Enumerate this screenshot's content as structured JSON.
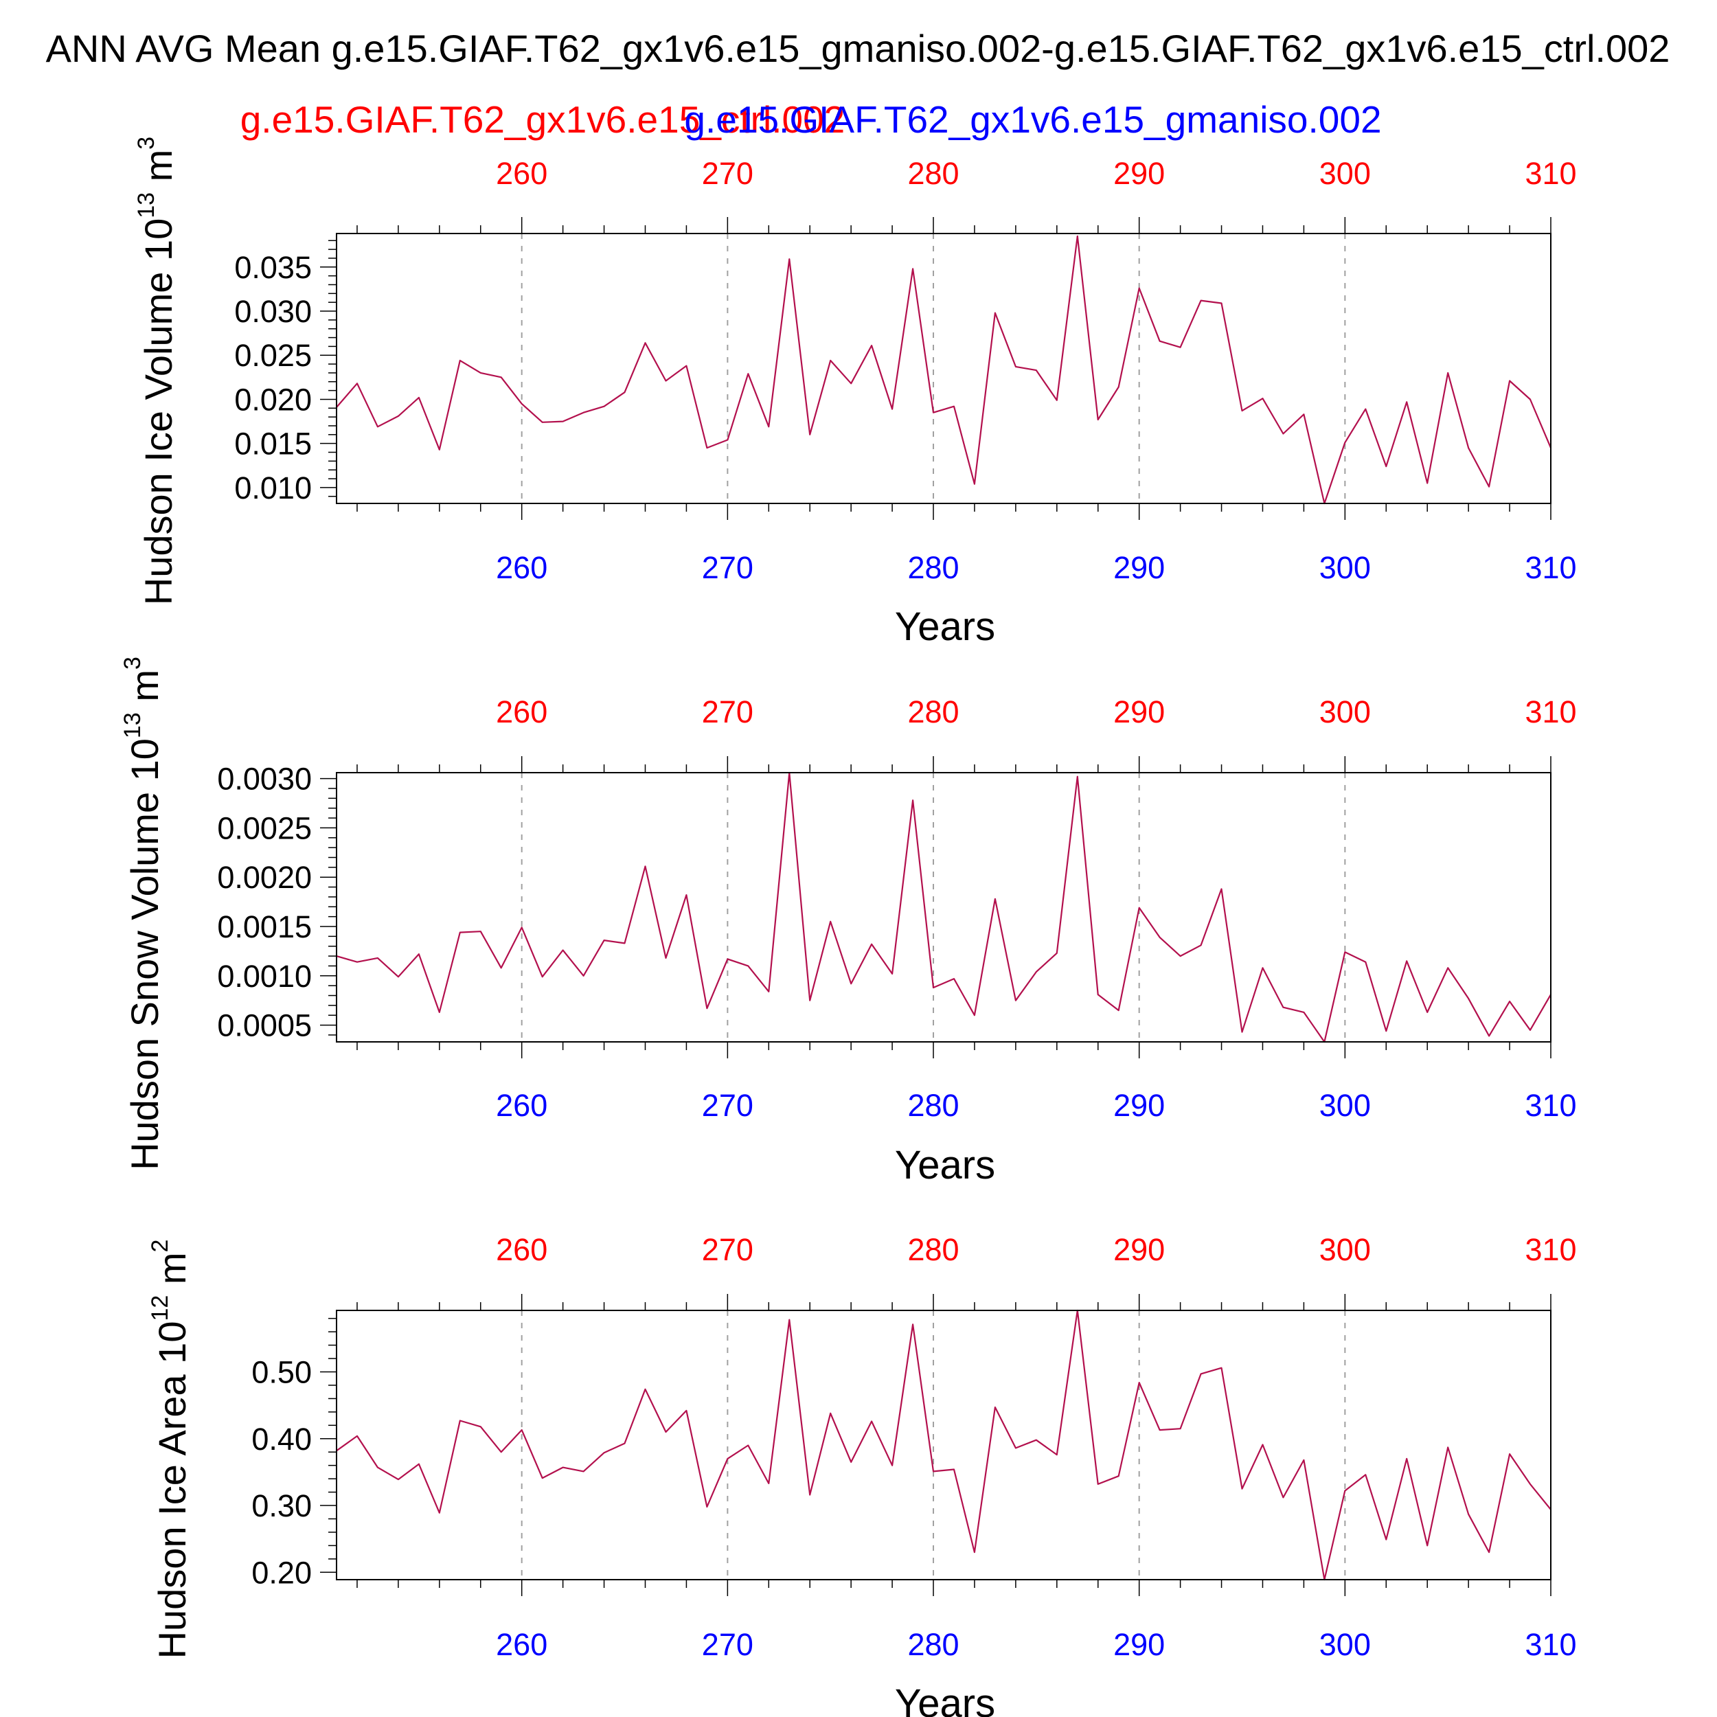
{
  "title": "ANN AVG Mean g.e15.GIAF.T62_gx1v6.e15_gmaniso.002-g.e15.GIAF.T62_gx1v6.e15_ctrl.002",
  "legend": {
    "case1": "g.e15.GIAF.T62_gx1v6.e15_ctrl.002",
    "case2": "g.e15.GIAF.T62_gx1v6.e15_gmaniso.002",
    "case1_color": "#ff0000",
    "case2_color": "#0000ff"
  },
  "colors": {
    "line": "#b3104d",
    "frame": "#000000",
    "grid": "#a0a0a0"
  },
  "chart_data": [
    {
      "type": "line",
      "ylabel_main": "Hudson Ice Volume 10",
      "ylabel_exp": "13",
      "ylabel_unit": " m",
      "ylabel_unit_exp": "3",
      "xlabel": "Years",
      "xlim": [
        251,
        310
      ],
      "ylim": [
        0.0082,
        0.0388
      ],
      "yticks": [
        0.01,
        0.015,
        0.02,
        0.025,
        0.03,
        0.035
      ],
      "ytick_labels": [
        "0.010",
        "0.015",
        "0.020",
        "0.025",
        "0.030",
        "0.035"
      ],
      "yminor": 0.001,
      "xticks": [
        260,
        270,
        280,
        290,
        300,
        310
      ],
      "xtick_labels": [
        "260",
        "270",
        "280",
        "290",
        "300",
        "310"
      ],
      "x_start": 251,
      "values": [
        0.0191,
        0.0218,
        0.0169,
        0.0181,
        0.0202,
        0.0143,
        0.0244,
        0.023,
        0.0225,
        0.0195,
        0.0174,
        0.0175,
        0.0185,
        0.0192,
        0.0208,
        0.0264,
        0.0221,
        0.0238,
        0.0145,
        0.0154,
        0.0229,
        0.0169,
        0.0359,
        0.016,
        0.0244,
        0.0218,
        0.0261,
        0.0189,
        0.0348,
        0.0185,
        0.0192,
        0.0104,
        0.0298,
        0.0237,
        0.0233,
        0.0199,
        0.0385,
        0.0177,
        0.0214,
        0.0326,
        0.0266,
        0.0259,
        0.0312,
        0.0309,
        0.0187,
        0.0201,
        0.0161,
        0.0183,
        0.0082,
        0.0151,
        0.0189,
        0.0124,
        0.0197,
        0.0105,
        0.023,
        0.0145,
        0.0101,
        0.0221,
        0.02,
        0.0145
      ]
    },
    {
      "type": "line",
      "ylabel_main": "Hudson Snow Volume 10",
      "ylabel_exp": "13",
      "ylabel_unit": " m",
      "ylabel_unit_exp": "3",
      "xlabel": "Years",
      "xlim": [
        251,
        310
      ],
      "ylim": [
        0.00033,
        0.00306
      ],
      "yticks": [
        0.0005,
        0.001,
        0.0015,
        0.002,
        0.0025,
        0.003
      ],
      "ytick_labels": [
        "0.0005",
        "0.0010",
        "0.0015",
        "0.0020",
        "0.0025",
        "0.0030"
      ],
      "yminor": 0.0001,
      "xticks": [
        260,
        270,
        280,
        290,
        300,
        310
      ],
      "xtick_labels": [
        "260",
        "270",
        "280",
        "290",
        "300",
        "310"
      ],
      "x_start": 251,
      "values": [
        0.0012,
        0.00114,
        0.00118,
        0.00099,
        0.00122,
        0.00063,
        0.00144,
        0.00145,
        0.00108,
        0.00149,
        0.00099,
        0.00126,
        0.001,
        0.00136,
        0.00133,
        0.00211,
        0.00118,
        0.00182,
        0.00067,
        0.00117,
        0.0011,
        0.00084,
        0.00306,
        0.00075,
        0.00155,
        0.00092,
        0.00132,
        0.00102,
        0.00278,
        0.00088,
        0.00097,
        0.0006,
        0.00178,
        0.00075,
        0.00104,
        0.00123,
        0.00302,
        0.00081,
        0.00065,
        0.00169,
        0.00139,
        0.0012,
        0.00131,
        0.00188,
        0.00043,
        0.00108,
        0.00068,
        0.00063,
        0.00033,
        0.00124,
        0.00114,
        0.00044,
        0.00115,
        0.00063,
        0.00108,
        0.00077,
        0.00039,
        0.00074,
        0.00045,
        0.00081
      ]
    },
    {
      "type": "line",
      "ylabel_main": "Hudson Ice Area 10",
      "ylabel_exp": "12",
      "ylabel_unit": " m",
      "ylabel_unit_exp": "2",
      "xlabel": "Years",
      "xlim": [
        251,
        310
      ],
      "ylim": [
        0.189,
        0.592
      ],
      "yticks": [
        0.2,
        0.3,
        0.4,
        0.5
      ],
      "ytick_labels": [
        "0.20",
        "0.30",
        "0.40",
        "0.50"
      ],
      "yminor": 0.02,
      "xticks": [
        260,
        270,
        280,
        290,
        300,
        310
      ],
      "xtick_labels": [
        "260",
        "270",
        "280",
        "290",
        "300",
        "310"
      ],
      "x_start": 251,
      "values": [
        0.382,
        0.404,
        0.357,
        0.339,
        0.362,
        0.289,
        0.427,
        0.418,
        0.38,
        0.413,
        0.341,
        0.357,
        0.351,
        0.379,
        0.393,
        0.474,
        0.41,
        0.442,
        0.298,
        0.37,
        0.39,
        0.333,
        0.578,
        0.316,
        0.438,
        0.365,
        0.426,
        0.36,
        0.571,
        0.351,
        0.354,
        0.23,
        0.447,
        0.386,
        0.398,
        0.376,
        0.592,
        0.332,
        0.344,
        0.484,
        0.413,
        0.415,
        0.497,
        0.506,
        0.325,
        0.391,
        0.312,
        0.368,
        0.189,
        0.322,
        0.346,
        0.249,
        0.37,
        0.24,
        0.387,
        0.287,
        0.23,
        0.377,
        0.332,
        0.294
      ]
    }
  ]
}
